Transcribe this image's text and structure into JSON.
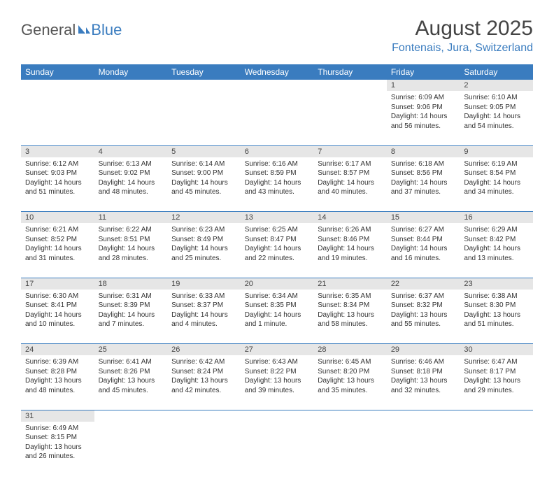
{
  "branding": {
    "part1": "General",
    "part2": "Blue"
  },
  "title": "August 2025",
  "location": "Fontenais, Jura, Switzerland",
  "colors": {
    "header_bg": "#3a7cbf",
    "header_text": "#ffffff",
    "daynum_bg": "#e6e6e6",
    "row_divider": "#3a7cbf",
    "logo_gray": "#555555",
    "logo_blue": "#3a7cbf",
    "body_text": "#333333",
    "page_bg": "#ffffff"
  },
  "typography": {
    "title_fontsize": 30,
    "location_fontsize": 16,
    "weekday_fontsize": 12,
    "daynum_fontsize": 11,
    "cell_fontsize": 10
  },
  "weekdays": [
    "Sunday",
    "Monday",
    "Tuesday",
    "Wednesday",
    "Thursday",
    "Friday",
    "Saturday"
  ],
  "weeks": [
    [
      null,
      null,
      null,
      null,
      null,
      {
        "n": "1",
        "sr": "Sunrise: 6:09 AM",
        "ss": "Sunset: 9:06 PM",
        "d1": "Daylight: 14 hours",
        "d2": "and 56 minutes."
      },
      {
        "n": "2",
        "sr": "Sunrise: 6:10 AM",
        "ss": "Sunset: 9:05 PM",
        "d1": "Daylight: 14 hours",
        "d2": "and 54 minutes."
      }
    ],
    [
      {
        "n": "3",
        "sr": "Sunrise: 6:12 AM",
        "ss": "Sunset: 9:03 PM",
        "d1": "Daylight: 14 hours",
        "d2": "and 51 minutes."
      },
      {
        "n": "4",
        "sr": "Sunrise: 6:13 AM",
        "ss": "Sunset: 9:02 PM",
        "d1": "Daylight: 14 hours",
        "d2": "and 48 minutes."
      },
      {
        "n": "5",
        "sr": "Sunrise: 6:14 AM",
        "ss": "Sunset: 9:00 PM",
        "d1": "Daylight: 14 hours",
        "d2": "and 45 minutes."
      },
      {
        "n": "6",
        "sr": "Sunrise: 6:16 AM",
        "ss": "Sunset: 8:59 PM",
        "d1": "Daylight: 14 hours",
        "d2": "and 43 minutes."
      },
      {
        "n": "7",
        "sr": "Sunrise: 6:17 AM",
        "ss": "Sunset: 8:57 PM",
        "d1": "Daylight: 14 hours",
        "d2": "and 40 minutes."
      },
      {
        "n": "8",
        "sr": "Sunrise: 6:18 AM",
        "ss": "Sunset: 8:56 PM",
        "d1": "Daylight: 14 hours",
        "d2": "and 37 minutes."
      },
      {
        "n": "9",
        "sr": "Sunrise: 6:19 AM",
        "ss": "Sunset: 8:54 PM",
        "d1": "Daylight: 14 hours",
        "d2": "and 34 minutes."
      }
    ],
    [
      {
        "n": "10",
        "sr": "Sunrise: 6:21 AM",
        "ss": "Sunset: 8:52 PM",
        "d1": "Daylight: 14 hours",
        "d2": "and 31 minutes."
      },
      {
        "n": "11",
        "sr": "Sunrise: 6:22 AM",
        "ss": "Sunset: 8:51 PM",
        "d1": "Daylight: 14 hours",
        "d2": "and 28 minutes."
      },
      {
        "n": "12",
        "sr": "Sunrise: 6:23 AM",
        "ss": "Sunset: 8:49 PM",
        "d1": "Daylight: 14 hours",
        "d2": "and 25 minutes."
      },
      {
        "n": "13",
        "sr": "Sunrise: 6:25 AM",
        "ss": "Sunset: 8:47 PM",
        "d1": "Daylight: 14 hours",
        "d2": "and 22 minutes."
      },
      {
        "n": "14",
        "sr": "Sunrise: 6:26 AM",
        "ss": "Sunset: 8:46 PM",
        "d1": "Daylight: 14 hours",
        "d2": "and 19 minutes."
      },
      {
        "n": "15",
        "sr": "Sunrise: 6:27 AM",
        "ss": "Sunset: 8:44 PM",
        "d1": "Daylight: 14 hours",
        "d2": "and 16 minutes."
      },
      {
        "n": "16",
        "sr": "Sunrise: 6:29 AM",
        "ss": "Sunset: 8:42 PM",
        "d1": "Daylight: 14 hours",
        "d2": "and 13 minutes."
      }
    ],
    [
      {
        "n": "17",
        "sr": "Sunrise: 6:30 AM",
        "ss": "Sunset: 8:41 PM",
        "d1": "Daylight: 14 hours",
        "d2": "and 10 minutes."
      },
      {
        "n": "18",
        "sr": "Sunrise: 6:31 AM",
        "ss": "Sunset: 8:39 PM",
        "d1": "Daylight: 14 hours",
        "d2": "and 7 minutes."
      },
      {
        "n": "19",
        "sr": "Sunrise: 6:33 AM",
        "ss": "Sunset: 8:37 PM",
        "d1": "Daylight: 14 hours",
        "d2": "and 4 minutes."
      },
      {
        "n": "20",
        "sr": "Sunrise: 6:34 AM",
        "ss": "Sunset: 8:35 PM",
        "d1": "Daylight: 14 hours",
        "d2": "and 1 minute."
      },
      {
        "n": "21",
        "sr": "Sunrise: 6:35 AM",
        "ss": "Sunset: 8:34 PM",
        "d1": "Daylight: 13 hours",
        "d2": "and 58 minutes."
      },
      {
        "n": "22",
        "sr": "Sunrise: 6:37 AM",
        "ss": "Sunset: 8:32 PM",
        "d1": "Daylight: 13 hours",
        "d2": "and 55 minutes."
      },
      {
        "n": "23",
        "sr": "Sunrise: 6:38 AM",
        "ss": "Sunset: 8:30 PM",
        "d1": "Daylight: 13 hours",
        "d2": "and 51 minutes."
      }
    ],
    [
      {
        "n": "24",
        "sr": "Sunrise: 6:39 AM",
        "ss": "Sunset: 8:28 PM",
        "d1": "Daylight: 13 hours",
        "d2": "and 48 minutes."
      },
      {
        "n": "25",
        "sr": "Sunrise: 6:41 AM",
        "ss": "Sunset: 8:26 PM",
        "d1": "Daylight: 13 hours",
        "d2": "and 45 minutes."
      },
      {
        "n": "26",
        "sr": "Sunrise: 6:42 AM",
        "ss": "Sunset: 8:24 PM",
        "d1": "Daylight: 13 hours",
        "d2": "and 42 minutes."
      },
      {
        "n": "27",
        "sr": "Sunrise: 6:43 AM",
        "ss": "Sunset: 8:22 PM",
        "d1": "Daylight: 13 hours",
        "d2": "and 39 minutes."
      },
      {
        "n": "28",
        "sr": "Sunrise: 6:45 AM",
        "ss": "Sunset: 8:20 PM",
        "d1": "Daylight: 13 hours",
        "d2": "and 35 minutes."
      },
      {
        "n": "29",
        "sr": "Sunrise: 6:46 AM",
        "ss": "Sunset: 8:18 PM",
        "d1": "Daylight: 13 hours",
        "d2": "and 32 minutes."
      },
      {
        "n": "30",
        "sr": "Sunrise: 6:47 AM",
        "ss": "Sunset: 8:17 PM",
        "d1": "Daylight: 13 hours",
        "d2": "and 29 minutes."
      }
    ],
    [
      {
        "n": "31",
        "sr": "Sunrise: 6:49 AM",
        "ss": "Sunset: 8:15 PM",
        "d1": "Daylight: 13 hours",
        "d2": "and 26 minutes."
      },
      null,
      null,
      null,
      null,
      null,
      null
    ]
  ]
}
